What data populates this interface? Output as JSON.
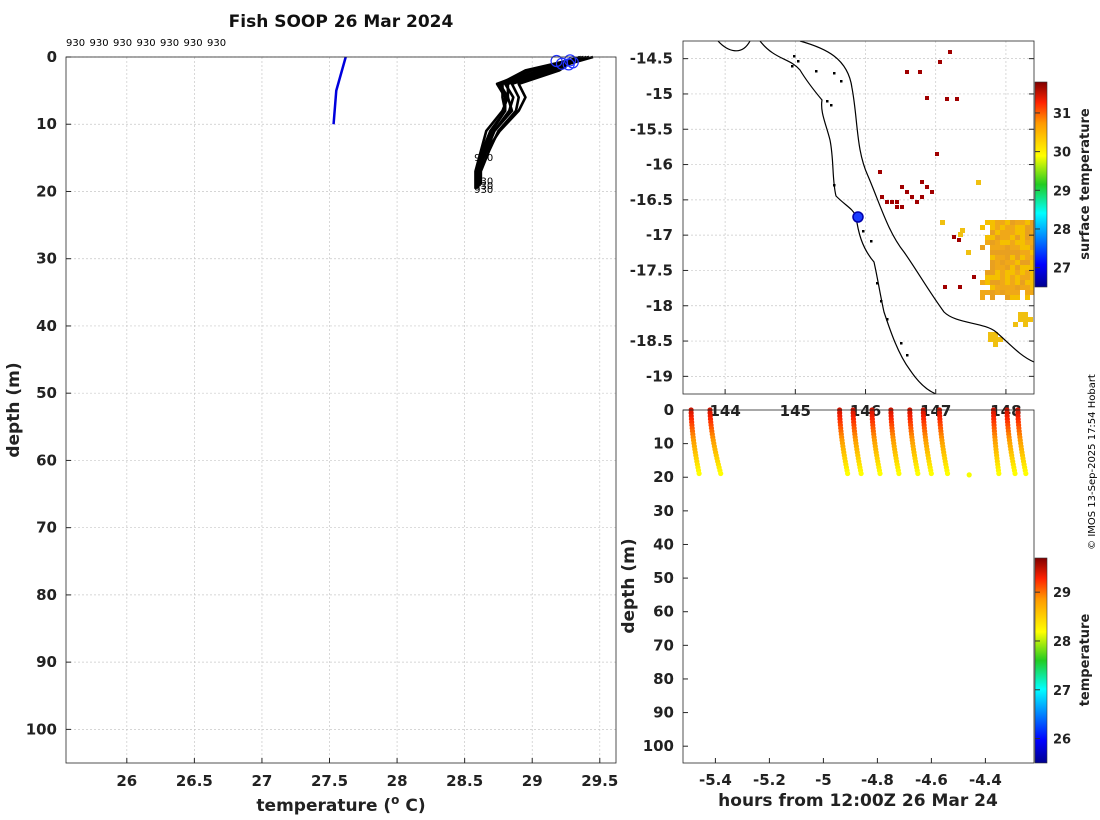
{
  "credit": "© IMOS 13-Sep-2025 17:54 Hobart",
  "colors": {
    "profile_black": "#000000",
    "profile_blue": "#0000dd",
    "land_patch": "#a00000"
  },
  "chart_data": [
    {
      "id": "profile",
      "type": "line",
      "title": "Fish SOOP 26 Mar 2024",
      "xlabel": "temperature (o C)",
      "xlabel_main": "temperature (",
      "xlabel_sup": "o",
      "xlabel_tail": " C)",
      "ylabel": "depth (m)",
      "xlim": [
        25.55,
        29.62
      ],
      "ylim": [
        0,
        105
      ],
      "y_reversed": true,
      "xticks": [
        26,
        26.5,
        27,
        27.5,
        28,
        28.5,
        29,
        29.5
      ],
      "xtick_labels": [
        "26",
        "26.5",
        "27",
        "27.5",
        "28",
        "28.5",
        "29",
        "29.5"
      ],
      "yticks": [
        0,
        10,
        20,
        30,
        40,
        50,
        60,
        70,
        80,
        90,
        100
      ],
      "ytick_labels": [
        "0",
        "10",
        "20",
        "30",
        "40",
        "50",
        "60",
        "70",
        "80",
        "90",
        "100"
      ],
      "grid": true,
      "top_labels": [
        "930",
        "930",
        "930",
        "930",
        "930",
        "930",
        "930"
      ],
      "profile_labels": [
        {
          "text": "930",
          "t": 28.6,
          "d": 15
        },
        {
          "text": "930",
          "t": 28.6,
          "d": 18.5
        },
        {
          "text": "930",
          "t": 28.6,
          "d": 19.2
        },
        {
          "text": "930",
          "t": 28.6,
          "d": 19.8
        }
      ],
      "blue_profile": {
        "t": [
          27.62,
          27.55,
          27.53
        ],
        "d": [
          0,
          5,
          10
        ]
      },
      "black_profiles": [
        {
          "t": [
            29.45,
            29.1,
            28.82,
            28.82,
            28.85,
            28.72,
            28.66,
            28.6,
            28.6
          ],
          "d": [
            0,
            2,
            4,
            6,
            8,
            11,
            14,
            17,
            19.5
          ]
        },
        {
          "t": [
            29.42,
            29.05,
            28.78,
            28.78,
            28.8,
            28.7,
            28.64,
            28.6,
            28.6
          ],
          "d": [
            0,
            2,
            4,
            6,
            8,
            11,
            14,
            17,
            19.3
          ]
        },
        {
          "t": [
            29.4,
            29.15,
            28.85,
            28.9,
            28.88,
            28.75,
            28.68,
            28.62,
            28.62
          ],
          "d": [
            0,
            2,
            4,
            6,
            8,
            11,
            14,
            17,
            19.0
          ]
        },
        {
          "t": [
            29.38,
            28.95,
            28.76,
            28.82,
            28.78,
            28.66,
            28.62,
            28.58,
            28.58
          ],
          "d": [
            0,
            2,
            4,
            6,
            8,
            11,
            14,
            17,
            19.6
          ]
        },
        {
          "t": [
            29.35,
            29.2,
            28.9,
            28.95,
            28.9,
            28.76,
            28.66,
            28.6,
            28.6
          ],
          "d": [
            0,
            2,
            4,
            6,
            8,
            11,
            14,
            17,
            19.4
          ]
        },
        {
          "t": [
            29.42,
            29.1,
            28.8,
            28.86,
            28.83,
            28.72,
            28.65,
            28.61,
            28.61
          ],
          "d": [
            0,
            2,
            4,
            6,
            8,
            11,
            14,
            17,
            19.2
          ]
        },
        {
          "t": [
            29.36,
            29.0,
            28.74,
            28.8,
            28.8,
            28.69,
            28.63,
            28.59,
            28.59
          ],
          "d": [
            0,
            2,
            4,
            6,
            8,
            11,
            14,
            17,
            19.5
          ]
        }
      ],
      "surface_markers": [
        {
          "t": 29.18,
          "d": 0.6
        },
        {
          "t": 29.22,
          "d": 1.0
        },
        {
          "t": 29.28,
          "d": 0.5
        },
        {
          "t": 29.3,
          "d": 0.8
        },
        {
          "t": 29.27,
          "d": 1.1
        }
      ]
    },
    {
      "id": "map",
      "type": "heatmap",
      "ylim": [
        -19.25,
        -14.25
      ],
      "xlim": [
        143.4,
        148.4
      ],
      "yticks": [
        -14.5,
        -15,
        -15.5,
        -16,
        -16.5,
        -17,
        -17.5,
        -18,
        -18.5,
        -19
      ],
      "ytick_labels": [
        "-14.5",
        "-15",
        "-15.5",
        "-16",
        "-16.5",
        "-17",
        "-17.5",
        "-18",
        "-18.5",
        "-19"
      ],
      "xticks": [
        144,
        145,
        146,
        147,
        148
      ],
      "xtick_labels": [
        "144",
        "145",
        "146",
        "147",
        "148"
      ],
      "colorbar_label": "surface temperature",
      "colorbar_range": [
        26.5,
        31.8
      ],
      "colorbar_ticks": [
        27,
        28,
        29,
        30,
        31
      ],
      "colorbar_tick_labels": [
        "27",
        "28",
        "29",
        "30",
        "31"
      ],
      "vessel_position": {
        "lon": 145.85,
        "lat": -16.78
      }
    },
    {
      "id": "section",
      "type": "scatter",
      "xlabel": "hours from 12:00Z 26 Mar 24",
      "ylabel": "depth (m)",
      "xlim": [
        -5.52,
        -4.22
      ],
      "ylim": [
        0,
        105
      ],
      "y_reversed": true,
      "xticks": [
        -5.4,
        -5.2,
        -5,
        -4.8,
        -4.6,
        -4.4
      ],
      "xtick_labels": [
        "-5.4",
        "-5.2",
        "-5",
        "-4.8",
        "-4.6",
        "-4.4"
      ],
      "yticks": [
        0,
        10,
        20,
        30,
        40,
        50,
        60,
        70,
        80,
        90,
        100
      ],
      "ytick_labels": [
        "0",
        "10",
        "20",
        "30",
        "40",
        "50",
        "60",
        "70",
        "80",
        "90",
        "100"
      ],
      "colorbar_label": "temperature",
      "colorbar_range": [
        25.5,
        29.7
      ],
      "colorbar_ticks": [
        26,
        27,
        28,
        29
      ],
      "colorbar_tick_labels": [
        "26",
        "27",
        "28",
        "29"
      ],
      "casts": [
        {
          "x0": -5.49,
          "x1": -5.46
        },
        {
          "x0": -5.42,
          "x1": -5.38
        },
        {
          "x0": -4.94,
          "x1": -4.91
        },
        {
          "x0": -4.89,
          "x1": -4.86
        },
        {
          "x0": -4.82,
          "x1": -4.79
        },
        {
          "x0": -4.75,
          "x1": -4.72
        },
        {
          "x0": -4.68,
          "x1": -4.65
        },
        {
          "x0": -4.63,
          "x1": -4.6
        },
        {
          "x0": -4.57,
          "x1": -4.54
        },
        {
          "x0": -4.37,
          "x1": -4.35
        },
        {
          "x0": -4.32,
          "x1": -4.29
        },
        {
          "x0": -4.28,
          "x1": -4.25
        }
      ],
      "extra_points": [
        {
          "x": -4.46,
          "d": 19.3
        }
      ]
    }
  ]
}
